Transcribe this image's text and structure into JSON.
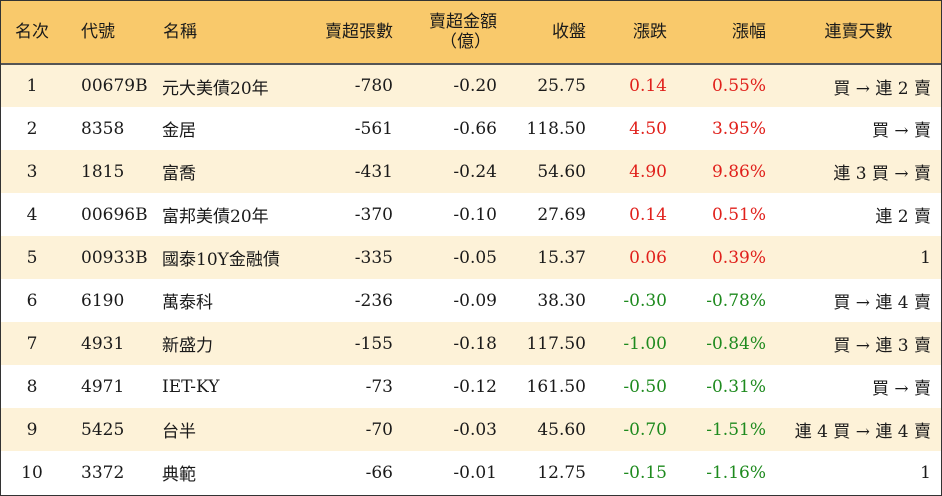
{
  "headers": {
    "rank": "名次",
    "code": "代號",
    "name": "名稱",
    "net_sell_lots": "賣超張數",
    "net_sell_amount_l1": "賣超金額",
    "net_sell_amount_l2": "（億）",
    "close": "收盤",
    "change": "漲跌",
    "change_pct": "漲幅",
    "streak": "連賣天數"
  },
  "colors": {
    "header_bg": "#f9c96b",
    "stripe_bg": "#fdf2d8",
    "up": "#e0201b",
    "down": "#1e8a1e"
  },
  "rows": [
    {
      "rank": "1",
      "code": "00679B",
      "name": "元大美債20年",
      "lots": "-780",
      "amount": "-0.20",
      "close": "25.75",
      "change": "0.14",
      "pct": "0.55%",
      "dir": "up",
      "streak": "買 → 連 2 賣"
    },
    {
      "rank": "2",
      "code": "8358",
      "name": "金居",
      "lots": "-561",
      "amount": "-0.66",
      "close": "118.50",
      "change": "4.50",
      "pct": "3.95%",
      "dir": "up",
      "streak": "買 → 賣"
    },
    {
      "rank": "3",
      "code": "1815",
      "name": "富喬",
      "lots": "-431",
      "amount": "-0.24",
      "close": "54.60",
      "change": "4.90",
      "pct": "9.86%",
      "dir": "up",
      "streak": "連 3 買 → 賣"
    },
    {
      "rank": "4",
      "code": "00696B",
      "name": "富邦美債20年",
      "lots": "-370",
      "amount": "-0.10",
      "close": "27.69",
      "change": "0.14",
      "pct": "0.51%",
      "dir": "up",
      "streak": "連 2 賣"
    },
    {
      "rank": "5",
      "code": "00933B",
      "name": "國泰10Y金融債",
      "lots": "-335",
      "amount": "-0.05",
      "close": "15.37",
      "change": "0.06",
      "pct": "0.39%",
      "dir": "up",
      "streak": "1"
    },
    {
      "rank": "6",
      "code": "6190",
      "name": "萬泰科",
      "lots": "-236",
      "amount": "-0.09",
      "close": "38.30",
      "change": "-0.30",
      "pct": "-0.78%",
      "dir": "down",
      "streak": "買 → 連 4 賣"
    },
    {
      "rank": "7",
      "code": "4931",
      "name": "新盛力",
      "lots": "-155",
      "amount": "-0.18",
      "close": "117.50",
      "change": "-1.00",
      "pct": "-0.84%",
      "dir": "down",
      "streak": "買 → 連 3 賣"
    },
    {
      "rank": "8",
      "code": "4971",
      "name": "IET-KY",
      "lots": "-73",
      "amount": "-0.12",
      "close": "161.50",
      "change": "-0.50",
      "pct": "-0.31%",
      "dir": "down",
      "streak": "買 → 賣"
    },
    {
      "rank": "9",
      "code": "5425",
      "name": "台半",
      "lots": "-70",
      "amount": "-0.03",
      "close": "45.60",
      "change": "-0.70",
      "pct": "-1.51%",
      "dir": "down",
      "streak": "連 4 買 → 連 4 賣"
    },
    {
      "rank": "10",
      "code": "3372",
      "name": "典範",
      "lots": "-66",
      "amount": "-0.01",
      "close": "12.75",
      "change": "-0.15",
      "pct": "-1.16%",
      "dir": "down",
      "streak": "1"
    }
  ]
}
